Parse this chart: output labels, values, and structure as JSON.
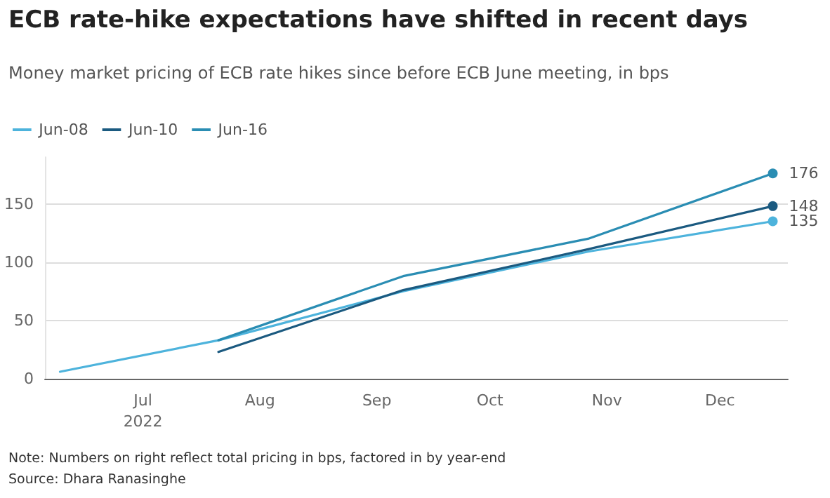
{
  "chart_data": {
    "type": "line",
    "title": "ECB rate-hike expectations have shifted in recent days",
    "subtitle": "Money market pricing of ECB rate hikes since before ECB June meeting, in bps",
    "annotations": [
      "Note: Numbers on right reflect total pricing in bps, factored in by year-end",
      "Source: Dhara Ranasinghe"
    ],
    "series": [
      {
        "name": "Jun-08",
        "color": "#4db3dc",
        "x": [
          "2022-06-09",
          "2022-07-21",
          "2022-09-08",
          "2022-10-27",
          "2022-12-15"
        ],
        "values": [
          6,
          33,
          75,
          109,
          135
        ],
        "value_labels": [
          null,
          null,
          null,
          null,
          "135"
        ]
      },
      {
        "name": "Jun-10",
        "color": "#1b5a80",
        "x": [
          "2022-07-21",
          "2022-09-08",
          "2022-10-27",
          "2022-12-15"
        ],
        "values": [
          23,
          76,
          111,
          148
        ],
        "value_labels": [
          null,
          null,
          null,
          "148"
        ]
      },
      {
        "name": "Jun-16",
        "color": "#2a8db3",
        "x": [
          "2022-07-21",
          "2022-09-08",
          "2022-10-27",
          "2022-12-15"
        ],
        "values": [
          33,
          88,
          120,
          176
        ],
        "value_labels": [
          null,
          null,
          null,
          "176"
        ]
      }
    ],
    "xlim": [
      "2022-06-05",
      "2022-12-19"
    ],
    "xticks": [
      {
        "value": "2022-07-01",
        "label": "Jul\n2022"
      },
      {
        "value": "2022-08-01",
        "label": "Aug"
      },
      {
        "value": "2022-09-01",
        "label": "Sep"
      },
      {
        "value": "2022-10-01",
        "label": "Oct"
      },
      {
        "value": "2022-11-01",
        "label": "Nov"
      },
      {
        "value": "2022-12-01",
        "label": "Dec"
      }
    ],
    "ylim": [
      0,
      190
    ],
    "yticks": [
      0,
      50,
      100,
      150
    ],
    "grid": "y",
    "legend": "top left",
    "marker": "none",
    "line_style": "solid"
  }
}
